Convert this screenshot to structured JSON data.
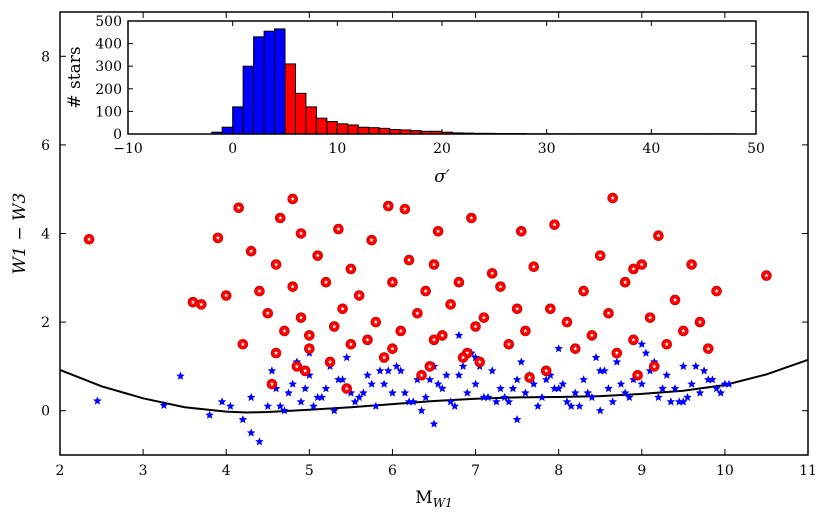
{
  "chart_data": [
    {
      "type": "scatter",
      "xlabel": "M_W1",
      "ylabel": "W1 − W3",
      "xlim": [
        2,
        11
      ],
      "ylim": [
        -1,
        9
      ],
      "xticks": [
        2,
        3,
        4,
        5,
        6,
        7,
        8,
        9,
        10,
        11
      ],
      "yticks": [
        0,
        2,
        4,
        6,
        8
      ],
      "colors": {
        "excess": "#ff0000",
        "normal": "#0000ff",
        "curve": "#000000"
      },
      "curve": {
        "name": "",
        "x": [
          2.0,
          2.5,
          3.0,
          3.5,
          4.0,
          4.25,
          4.5,
          5.0,
          5.5,
          6.0,
          6.5,
          7.0,
          7.5,
          8.0,
          8.5,
          9.0,
          9.5,
          10.0,
          10.5,
          11.0
        ],
        "y": [
          0.92,
          0.55,
          0.28,
          0.08,
          -0.02,
          -0.04,
          -0.03,
          0.02,
          0.08,
          0.15,
          0.22,
          0.27,
          0.3,
          0.31,
          0.33,
          0.38,
          0.45,
          0.58,
          0.82,
          1.15
        ]
      },
      "series": [
        {
          "name": "",
          "marker": "circle-star",
          "x": [
            2.35,
            4.15,
            4.8,
            4.65,
            4.9,
            5.35,
            5.75,
            5.95,
            6.15,
            6.55,
            6.95,
            7.55,
            7.95,
            8.65,
            8.9,
            9.2,
            10.5,
            3.6,
            3.9,
            4.3,
            4.6,
            5.1,
            5.5,
            6.2,
            6.5,
            7.2,
            7.7,
            8.5,
            9.0,
            9.6,
            3.7,
            4.0,
            4.4,
            4.8,
            5.2,
            5.6,
            6.0,
            6.4,
            6.8,
            7.3,
            7.9,
            8.3,
            8.8,
            9.4,
            9.9,
            4.5,
            4.9,
            5.4,
            5.8,
            6.3,
            6.7,
            7.1,
            7.5,
            8.1,
            8.6,
            9.1,
            9.7,
            4.7,
            5.0,
            5.3,
            5.7,
            6.1,
            6.6,
            7.0,
            7.6,
            8.4,
            8.9,
            9.5,
            4.2,
            4.6,
            5.0,
            5.5,
            6.0,
            6.5,
            6.9,
            7.4,
            8.2,
            8.7,
            9.3,
            9.8,
            4.85,
            5.25,
            5.9,
            6.45,
            7.05,
            7.85,
            8.95,
            9.15,
            4.55,
            4.95,
            5.45,
            6.35,
            6.85,
            7.65
          ],
          "y": [
            3.87,
            4.58,
            4.78,
            4.35,
            4.0,
            4.1,
            3.85,
            4.62,
            4.55,
            4.05,
            4.35,
            4.05,
            4.2,
            4.8,
            3.2,
            3.95,
            3.05,
            2.45,
            3.9,
            3.6,
            3.3,
            3.5,
            3.2,
            3.4,
            3.3,
            3.1,
            3.25,
            3.5,
            3.3,
            3.3,
            2.4,
            2.6,
            2.7,
            2.8,
            2.9,
            2.6,
            2.9,
            2.7,
            2.9,
            2.8,
            2.3,
            2.7,
            2.9,
            2.5,
            2.7,
            2.2,
            2.1,
            2.3,
            2.0,
            2.2,
            2.4,
            2.1,
            2.3,
            2.0,
            2.2,
            2.1,
            2.0,
            1.8,
            1.7,
            1.9,
            1.6,
            1.8,
            1.7,
            1.9,
            1.8,
            1.7,
            1.6,
            1.8,
            1.5,
            1.3,
            1.4,
            1.5,
            1.4,
            1.6,
            1.3,
            1.5,
            1.4,
            1.3,
            1.5,
            1.4,
            1.0,
            1.1,
            1.2,
            1.0,
            1.1,
            0.9,
            0.8,
            1.0,
            0.6,
            0.9,
            0.5,
            0.8,
            1.2,
            0.75
          ]
        },
        {
          "name": "",
          "marker": "star",
          "x": [
            2.45,
            3.25,
            3.45,
            3.8,
            3.95,
            4.05,
            4.4,
            4.2,
            4.3,
            4.5,
            4.6,
            4.7,
            4.8,
            4.9,
            5.0,
            5.1,
            5.2,
            5.3,
            5.4,
            5.5,
            5.6,
            5.7,
            5.8,
            5.9,
            6.0,
            6.1,
            6.2,
            6.3,
            6.4,
            6.5,
            6.6,
            6.7,
            6.8,
            6.9,
            7.0,
            7.1,
            7.2,
            7.3,
            7.4,
            7.5,
            7.6,
            7.7,
            7.8,
            7.9,
            8.0,
            8.1,
            8.2,
            8.3,
            8.4,
            8.5,
            8.6,
            8.7,
            8.8,
            8.9,
            9.0,
            9.1,
            9.2,
            9.3,
            9.4,
            9.5,
            9.6,
            9.7,
            9.8,
            9.9,
            10.0,
            4.55,
            4.85,
            5.15,
            5.45,
            5.75,
            6.05,
            6.35,
            6.65,
            6.95,
            7.25,
            7.55,
            7.85,
            8.15,
            8.45,
            8.75,
            9.05,
            9.35,
            9.65,
            9.95,
            4.65,
            4.95,
            5.25,
            5.55,
            5.85,
            6.15,
            6.45,
            6.75,
            7.05,
            7.35,
            7.65,
            7.95,
            8.25,
            8.55,
            8.85,
            9.15,
            9.45,
            9.75,
            10.05,
            4.75,
            5.05,
            5.35,
            5.65,
            5.95,
            6.25,
            6.55,
            6.85,
            7.15,
            7.45,
            7.75,
            8.05,
            8.35,
            8.65,
            8.95,
            9.25,
            9.55,
            9.85,
            5.0,
            6.0,
            7.0,
            8.0,
            9.0,
            6.5,
            7.5,
            8.5,
            9.5,
            6.8,
            4.3
          ],
          "y": [
            0.22,
            0.12,
            0.78,
            -0.1,
            0.2,
            0.1,
            -0.7,
            -0.2,
            0.3,
            0.1,
            0.5,
            0.0,
            0.6,
            0.2,
            0.8,
            0.3,
            0.5,
            0.0,
            0.7,
            0.4,
            0.3,
            0.8,
            0.1,
            0.6,
            0.4,
            0.9,
            0.2,
            0.7,
            0.3,
            1.0,
            0.5,
            0.2,
            0.8,
            0.4,
            0.6,
            0.3,
            0.9,
            0.5,
            0.2,
            0.7,
            0.4,
            0.6,
            0.3,
            0.8,
            0.5,
            0.2,
            0.4,
            0.7,
            0.3,
            0.9,
            0.5,
            1.1,
            0.4,
            0.7,
            0.6,
            0.9,
            0.3,
            0.8,
            0.5,
            1.0,
            0.6,
            0.4,
            0.7,
            0.5,
            0.6,
            0.9,
            1.1,
            0.3,
            1.2,
            0.6,
            1.0,
            0.0,
            0.8,
            1.3,
            0.2,
            1.1,
            0.7,
            0.1,
            1.2,
            0.6,
            1.3,
            0.2,
            1.0,
            0.4,
            0.1,
            0.5,
            1.0,
            0.2,
            0.9,
            0.4,
            0.7,
            0.1,
            1.0,
            0.3,
            0.8,
            0.5,
            0.1,
            0.9,
            0.3,
            1.1,
            0.2,
            0.9,
            0.6,
            0.4,
            0.1,
            0.7,
            0.4,
            0.9,
            0.2,
            0.6,
            1.0,
            0.3,
            0.5,
            0.1,
            0.6,
            0.4,
            0.2,
            0.8,
            0.5,
            0.3,
            0.7,
            1.3,
            1.4,
            1.2,
            1.4,
            1.5,
            -0.3,
            -0.2,
            0.0,
            0.2,
            1.7,
            -0.5
          ]
        }
      ]
    },
    {
      "type": "bar",
      "xlabel": "σ′",
      "ylabel": "# stars",
      "xlim": [
        -10,
        50
      ],
      "ylim": [
        0,
        500
      ],
      "xticks": [
        -10,
        0,
        10,
        20,
        30,
        40,
        50
      ],
      "yticks": [
        0,
        100,
        200,
        300,
        400,
        500
      ],
      "bin_width": 1,
      "bin_start": -2,
      "values": [
        8,
        30,
        120,
        300,
        430,
        455,
        465,
        310,
        180,
        120,
        70,
        55,
        45,
        40,
        30,
        28,
        25,
        20,
        18,
        15,
        12,
        12,
        8,
        5,
        4,
        3,
        3,
        2,
        2,
        2,
        1,
        1,
        1,
        1,
        1,
        1,
        1,
        1,
        1,
        1,
        1,
        1,
        1,
        1,
        1,
        1,
        1,
        1,
        1,
        1
      ],
      "colors": {
        "low": "#0000ff",
        "high": "#ff0000"
      },
      "split_at": 5
    }
  ]
}
